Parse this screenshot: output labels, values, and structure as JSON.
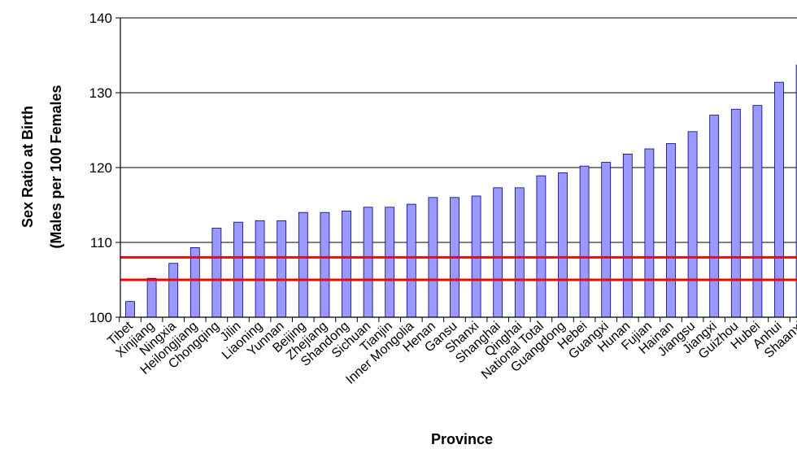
{
  "chart_data": {
    "type": "bar",
    "title": "",
    "xlabel": "Province",
    "ylabel_line1": "Sex Ratio at Birth",
    "ylabel_line2": "(Males per 100 Females",
    "ylim": [
      100,
      140
    ],
    "yticks": [
      100,
      110,
      120,
      130,
      140
    ],
    "grid": true,
    "legend": "none",
    "colors": {
      "bar_fill": "#9999ff",
      "bar_stroke": "#000080",
      "reference_line": "#ff0000",
      "grid": "#000000"
    },
    "reference_lines": [
      105,
      108
    ],
    "categories": [
      "Tibet",
      "Xinjiang",
      "Ningxia",
      "Heilongjiang",
      "Chongqing",
      "Jilin",
      "Liaoning",
      "Yunnan",
      "Beijing",
      "Zhejiang",
      "Shandong",
      "Sichuan",
      "Tianjin",
      "Inner Mongolia",
      "Henan",
      "Gansu",
      "Shanxi",
      "Shanghai",
      "Qinghai",
      "National Total",
      "Guangdong",
      "Hebei",
      "Guangxi",
      "Hunan",
      "Fujian",
      "Hainan",
      "Jiangsu",
      "Jiangxi",
      "Guizhou",
      "Hubei",
      "Anhui",
      "Shaanxi"
    ],
    "values": [
      102.1,
      105.2,
      107.2,
      109.3,
      111.9,
      112.7,
      112.9,
      112.9,
      114.0,
      114.0,
      114.2,
      114.7,
      114.7,
      115.1,
      116.0,
      116.0,
      116.2,
      117.3,
      117.3,
      118.9,
      119.3,
      120.2,
      120.7,
      121.8,
      122.5,
      123.2,
      124.8,
      127.0,
      127.8,
      128.3,
      131.4,
      133.7
    ]
  }
}
